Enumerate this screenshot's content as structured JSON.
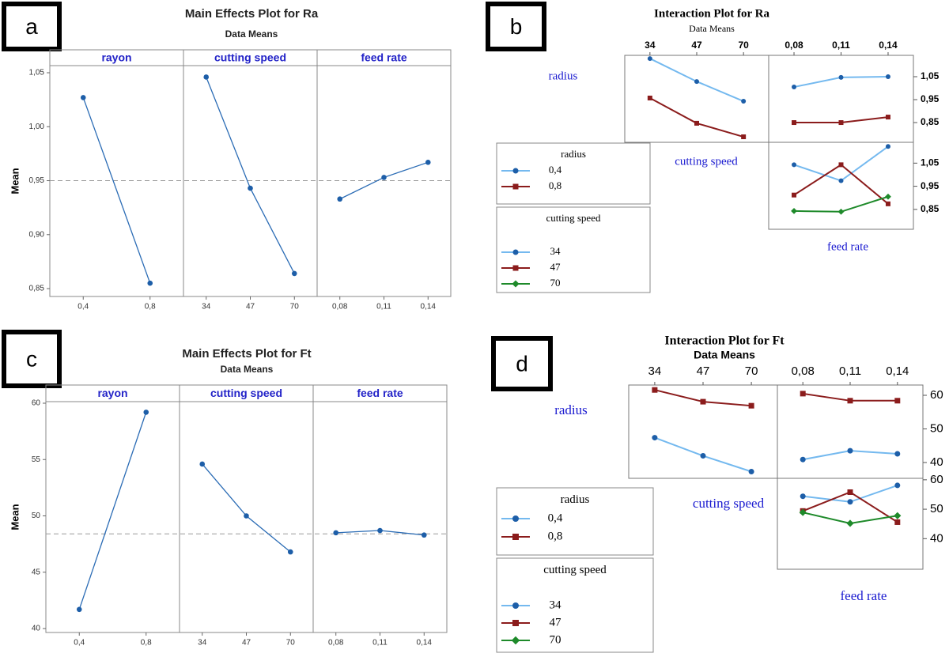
{
  "chart_data": [
    {
      "type": "main_effects",
      "label": "a",
      "title": "Main Effects Plot for Ra",
      "subtitle": "Data Means",
      "ylabel": "Mean",
      "ylim": [
        0.8427,
        1.0566
      ],
      "yticks": [
        {
          "value": 0.85,
          "label": "0,85"
        },
        {
          "value": 0.9,
          "label": "0,90"
        },
        {
          "value": 0.95,
          "label": "0,95"
        },
        {
          "value": 1.0,
          "label": "1,00"
        },
        {
          "value": 1.05,
          "label": "1,05"
        }
      ],
      "reference": 0.95,
      "color": "#2b6cb5",
      "panels": [
        {
          "name": "rayon",
          "categories": [
            "0,4",
            "0,8"
          ],
          "values": [
            1.027,
            0.855
          ]
        },
        {
          "name": "cutting speed",
          "categories": [
            "34",
            "47",
            "70"
          ],
          "values": [
            1.046,
            0.943,
            0.864
          ]
        },
        {
          "name": "feed rate",
          "categories": [
            "0,08",
            "0,11",
            "0,14"
          ],
          "values": [
            0.933,
            0.953,
            0.967
          ]
        }
      ]
    },
    {
      "type": "interaction",
      "label": "b",
      "title": "Interaction Plot for Ra",
      "subtitle": "Data Means",
      "factors": [
        "radius",
        "cutting speed",
        "feed rate"
      ],
      "cutting_speed_levels": [
        "34",
        "47",
        "70"
      ],
      "feed_rate_levels": [
        "0,08",
        "0,11",
        "0,14"
      ],
      "rows": [
        {
          "ylim": [
            0.764,
            1.143
          ],
          "yticks": [
            {
              "value": 0.85,
              "label": "0,85"
            },
            {
              "value": 0.95,
              "label": "0,95"
            },
            {
              "value": 1.05,
              "label": "1,05"
            }
          ]
        },
        {
          "ylim": [
            0.764,
            1.14
          ],
          "yticks": [
            {
              "value": 0.85,
              "label": "0,85"
            },
            {
              "value": 0.95,
              "label": "0,95"
            },
            {
              "value": 1.05,
              "label": "1,05"
            }
          ]
        }
      ],
      "legend_titles": [
        "radius",
        "cutting speed"
      ],
      "panels": {
        "radius_by_cutting_speed": [
          {
            "name": "0,4",
            "color": "#74b9ef",
            "marker": "circle",
            "values": [
              1.129,
              1.029,
              0.943
            ]
          },
          {
            "name": "0,8",
            "color": "#8b1c1c",
            "marker": "square",
            "values": [
              0.957,
              0.847,
              0.788
            ]
          }
        ],
        "radius_by_feed_rate": [
          {
            "name": "0,4",
            "color": "#74b9ef",
            "marker": "circle",
            "values": [
              1.005,
              1.047,
              1.05
            ]
          },
          {
            "name": "0,8",
            "color": "#8b1c1c",
            "marker": "square",
            "values": [
              0.85,
              0.85,
              0.874
            ]
          }
        ],
        "cutting_speed_by_feed_rate": [
          {
            "name": "34",
            "color": "#74b9ef",
            "marker": "circle",
            "values": [
              1.043,
              0.974,
              1.122
            ]
          },
          {
            "name": "47",
            "color": "#8b1c1c",
            "marker": "square",
            "values": [
              0.912,
              1.043,
              0.874
            ]
          },
          {
            "name": "70",
            "color": "#1e8a2a",
            "marker": "diamond",
            "values": [
              0.843,
              0.84,
              0.905
            ]
          }
        ]
      }
    },
    {
      "type": "main_effects",
      "label": "c",
      "title": "Main Effects Plot for Ft",
      "subtitle": "Data Means",
      "ylabel": "Mean",
      "ylim": [
        39.65,
        60.14
      ],
      "yticks": [
        40,
        45,
        50,
        55,
        60
      ],
      "reference": 48.4,
      "color": "#2b6cb5",
      "panels": [
        {
          "name": "rayon",
          "categories": [
            "0,4",
            "0,8"
          ],
          "values": [
            41.7,
            59.2
          ]
        },
        {
          "name": "cutting speed",
          "categories": [
            "34",
            "47",
            "70"
          ],
          "values": [
            54.6,
            50.0,
            46.8
          ]
        },
        {
          "name": "feed rate",
          "categories": [
            "0,08",
            "0,11",
            "0,14"
          ],
          "values": [
            48.5,
            48.7,
            48.3
          ]
        }
      ]
    },
    {
      "type": "interaction",
      "label": "d",
      "title": "Interaction Plot for Ft",
      "subtitle": "Data Means",
      "factors": [
        "radius",
        "cutting speed",
        "feed rate"
      ],
      "cutting_speed_levels": [
        "34",
        "47",
        "70"
      ],
      "feed_rate_levels": [
        "0,08",
        "0,11",
        "0,14"
      ],
      "rows": [
        {
          "ylim": [
            35.3,
            63.06
          ],
          "yticks": [
            40,
            50,
            60
          ]
        },
        {
          "ylim": [
            29.6,
            60.5
          ],
          "yticks": [
            40,
            50,
            60
          ]
        }
      ],
      "legend_titles": [
        "radius",
        "cutting speed"
      ],
      "panels": {
        "radius_by_cutting_speed": [
          {
            "name": "0,4",
            "color": "#74b9ef",
            "marker": "circle",
            "values": [
              47.4,
              42.0,
              37.3
            ]
          },
          {
            "name": "0,8",
            "color": "#8b1c1c",
            "marker": "square",
            "values": [
              61.6,
              58.1,
              56.9
            ]
          }
        ],
        "radius_by_feed_rate": [
          {
            "name": "0,4",
            "color": "#74b9ef",
            "marker": "circle",
            "values": [
              40.9,
              43.5,
              42.6
            ]
          },
          {
            "name": "0,8",
            "color": "#8b1c1c",
            "marker": "square",
            "values": [
              60.5,
              58.4,
              58.4
            ]
          }
        ],
        "cutting_speed_by_feed_rate": [
          {
            "name": "34",
            "color": "#74b9ef",
            "marker": "circle",
            "values": [
              54.4,
              52.5,
              58.1
            ]
          },
          {
            "name": "47",
            "color": "#8b1c1c",
            "marker": "square",
            "values": [
              49.4,
              55.8,
              45.6
            ]
          },
          {
            "name": "70",
            "color": "#1e8a2a",
            "marker": "diamond",
            "values": [
              48.9,
              45.2,
              47.8
            ]
          }
        ]
      }
    }
  ]
}
